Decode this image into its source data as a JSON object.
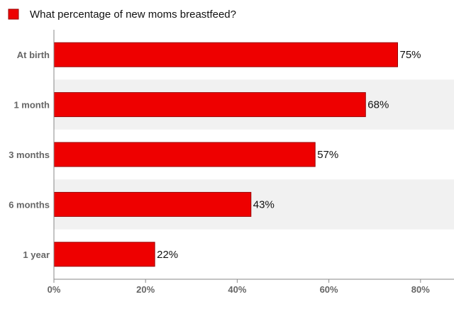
{
  "chart_data": {
    "type": "bar",
    "orientation": "horizontal",
    "categories": [
      "At birth",
      "1 month",
      "3 months",
      "6 months",
      "1 year"
    ],
    "series": [
      {
        "name": "What percentage of new moms breastfeed?",
        "values": [
          75,
          68,
          57,
          43,
          22
        ]
      }
    ],
    "data_labels": [
      "75%",
      "68%",
      "57%",
      "43%",
      "22%"
    ],
    "x_ticks": [
      0,
      20,
      40,
      60,
      80
    ],
    "x_tick_labels": [
      "0%",
      "20%",
      "40%",
      "60%",
      "80%"
    ],
    "xlim": [
      0,
      87
    ],
    "legend_position": "top-left",
    "colors": {
      "bar_fill": "#ee0000",
      "bar_stroke": "#990000",
      "band": "#f1f1f1",
      "axis": "#888888"
    },
    "grid": false
  }
}
